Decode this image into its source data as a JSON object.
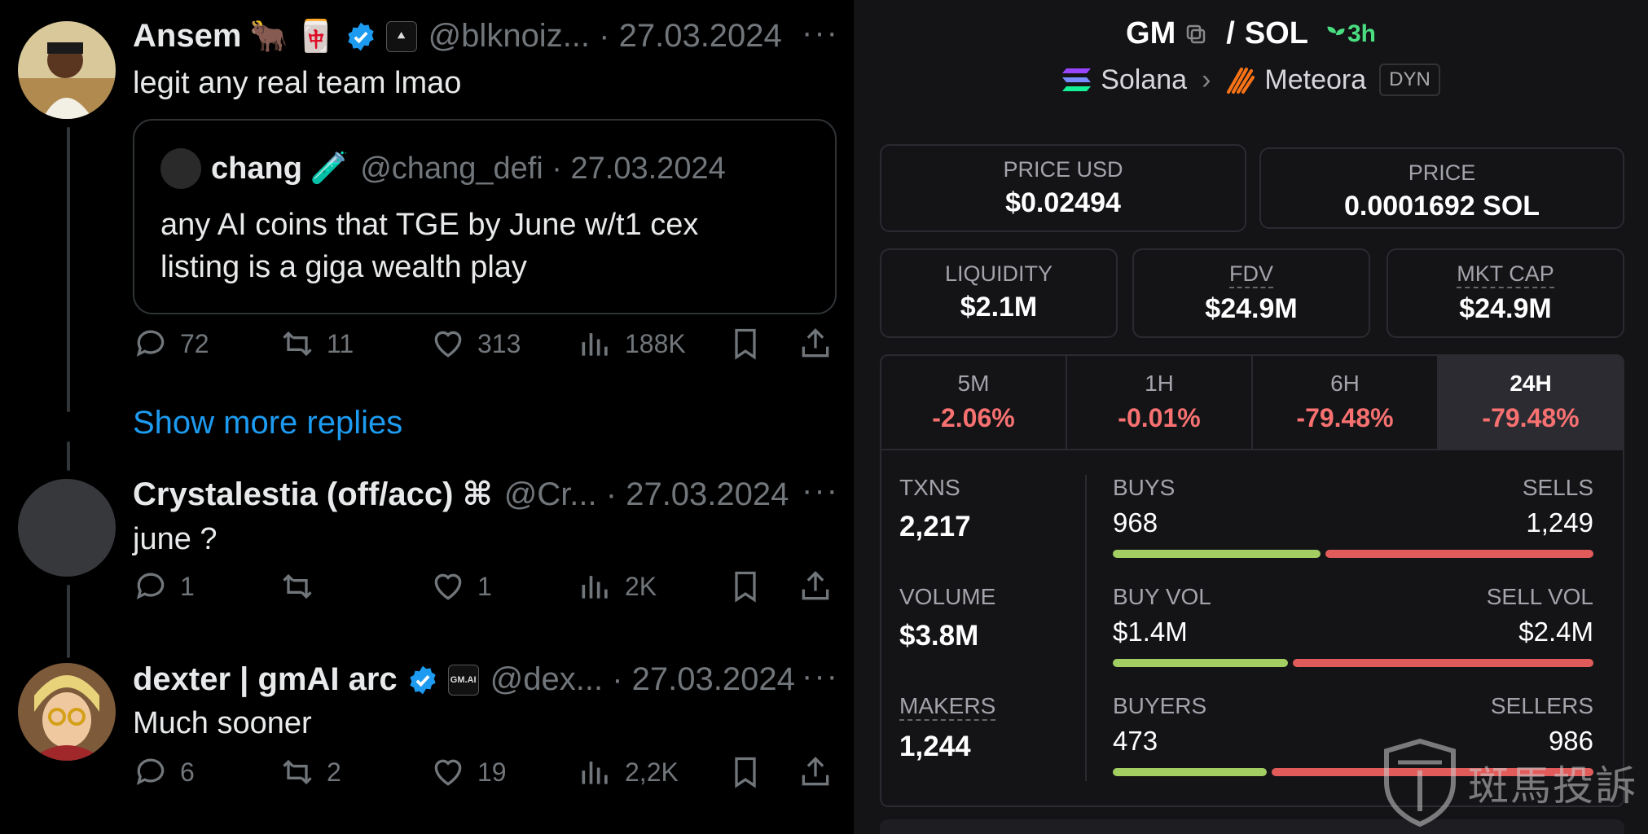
{
  "tweets": [
    {
      "name": "Ansem",
      "emoji": "🐂 🀄",
      "handle": "@blknoiz...",
      "date": "27.03.2024",
      "text": "legit any real team lmao",
      "quote": {
        "name": "chang",
        "emoji": "🧪",
        "handle": "@chang_defi",
        "date": "27.03.2024",
        "text": "any AI coins that TGE by June w/t1 cex listing is a giga wealth play"
      },
      "replies": "72",
      "retweets": "11",
      "likes": "313",
      "views": "188K"
    },
    {
      "name": "Crystalestia (off/acc) ⌘",
      "handle": "@Cr...",
      "date": "27.03.2024",
      "text": "june ?",
      "replies": "1",
      "retweets": "",
      "likes": "1",
      "views": "2K"
    },
    {
      "name": "dexter | gmAI arc",
      "badge": "GM.AI",
      "handle": "@dex...",
      "date": "27.03.2024",
      "text": "Much sooner",
      "replies": "6",
      "retweets": "2",
      "likes": "19",
      "views": "2,2K"
    }
  ],
  "show_more": "Show more replies",
  "dex": {
    "pair_base": "GM",
    "pair_sep": "/",
    "pair_quote": "SOL",
    "age": "3h",
    "chain": "Solana",
    "dex_name": "Meteora",
    "dex_tag": "DYN",
    "price_usd_label": "PRICE USD",
    "price_usd": "$0.02494",
    "price_label": "PRICE",
    "price": "0.0001692 SOL",
    "liquidity_label": "LIQUIDITY",
    "liquidity": "$2.1M",
    "fdv_label": "FDV",
    "fdv": "$24.9M",
    "mktcap_label": "MKT CAP",
    "mktcap": "$24.9M",
    "timeframes": [
      {
        "label": "5M",
        "value": "-2.06%"
      },
      {
        "label": "1H",
        "value": "-0.01%"
      },
      {
        "label": "6H",
        "value": "-79.48%"
      },
      {
        "label": "24H",
        "value": "-79.48%"
      }
    ],
    "txns_label": "TXNS",
    "txns": "2,217",
    "buys_label": "BUYS",
    "buys": "968",
    "sells_label": "SELLS",
    "sells": "1,249",
    "volume_label": "VOLUME",
    "volume": "$3.8M",
    "buy_vol_label": "BUY VOL",
    "buy_vol": "$1.4M",
    "sell_vol_label": "SELL VOL",
    "sell_vol": "$2.4M",
    "makers_label": "MAKERS",
    "makers": "1,244",
    "buyers_label": "BUYERS",
    "buyers": "473",
    "sellers_label": "SELLERS",
    "sellers": "986",
    "colors": {
      "positive": "#a3cf62",
      "negative": "#e15b5b",
      "age": "#4ade80"
    }
  },
  "watermark": "斑馬投訴"
}
